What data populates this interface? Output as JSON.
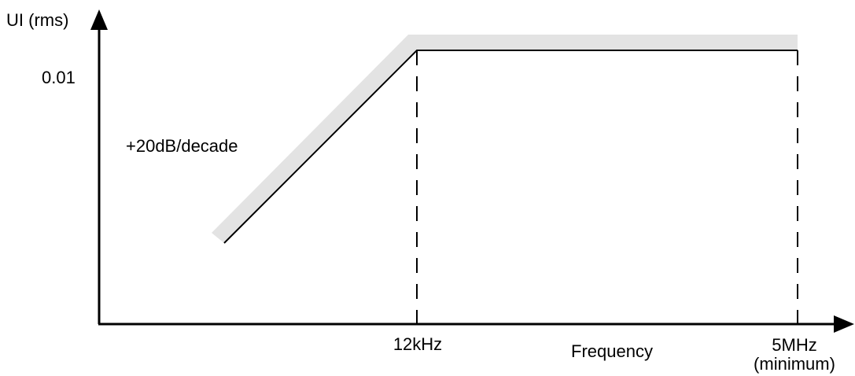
{
  "y_axis": {
    "label": "UI (rms)",
    "tick_label": "0.01"
  },
  "x_axis": {
    "label": "Frequency",
    "tick_labels": [
      "12kHz",
      "5MHz"
    ],
    "tick_note": "(minimum)"
  },
  "annotations": {
    "slope": "+20dB/decade"
  },
  "colors": {
    "line": "#000000",
    "band": "#e3e3e3",
    "background": "#ffffff"
  }
}
